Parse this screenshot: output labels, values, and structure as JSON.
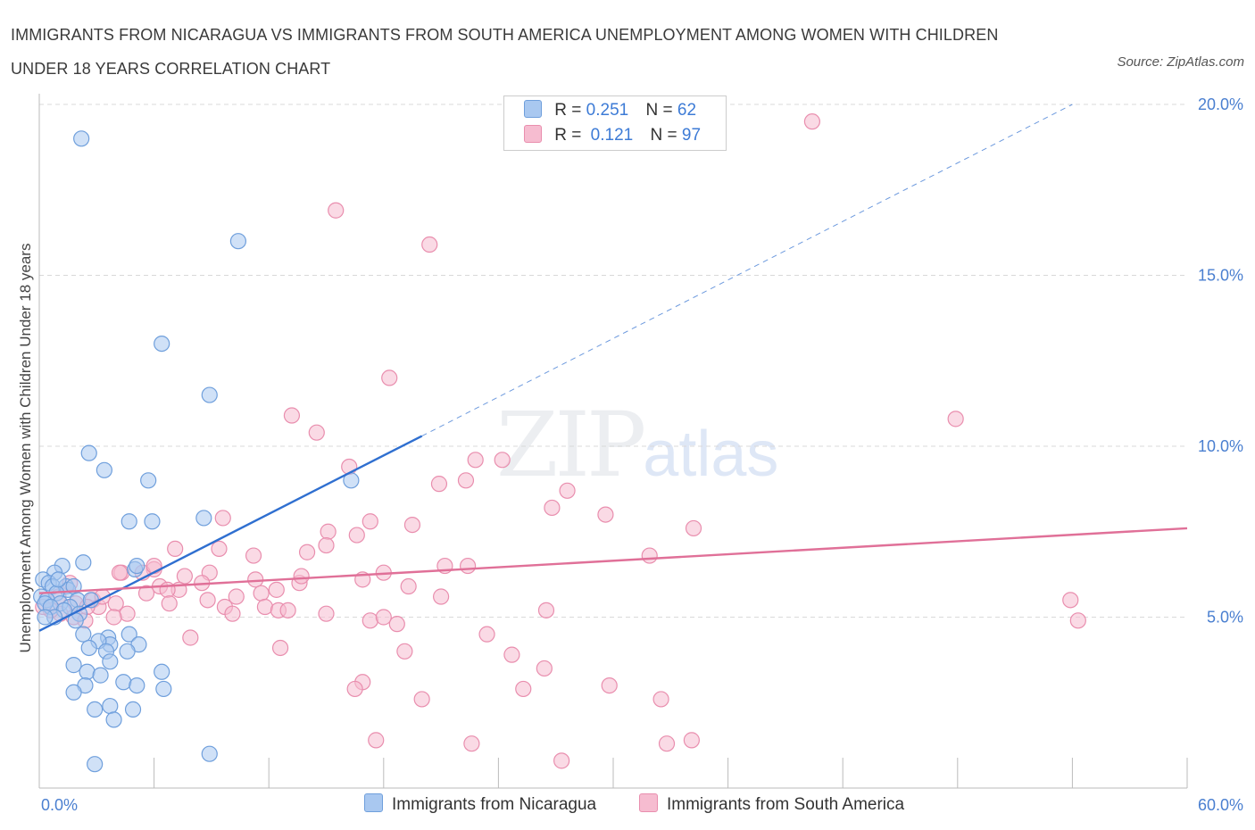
{
  "title_line1": "IMMIGRANTS FROM NICARAGUA VS IMMIGRANTS FROM SOUTH AMERICA UNEMPLOYMENT AMONG WOMEN WITH CHILDREN",
  "title_line2": "UNDER 18 YEARS CORRELATION CHART",
  "source": "Source: ZipAtlas.com",
  "watermark": {
    "zip": "ZIP",
    "atlas": "atlas"
  },
  "legend": {
    "rows": [
      {
        "r_label": "R =",
        "r_value": "0.251",
        "n_label": "N =",
        "n_value": "62"
      },
      {
        "r_label": "R =",
        "r_value": "0.121",
        "n_label": "N =",
        "n_value": "97"
      }
    ]
  },
  "colors": {
    "nicaragua_fill": "#a9c8f0",
    "nicaragua_stroke": "#6f9fdc",
    "nicaragua_line": "#2f6fd0",
    "southam_fill": "#f6bcd0",
    "southam_stroke": "#e98eae",
    "southam_line": "#e07098",
    "grid": "#d9d9d9",
    "axis_text": "#4a7fd0"
  },
  "chart_data": {
    "type": "scatter",
    "xlabel": "",
    "ylabel": "Unemployment Among Women with Children Under 18 years",
    "xlim": [
      0,
      60
    ],
    "ylim": [
      0,
      20
    ],
    "x_tick_labels": [
      "0.0%",
      "60.0%"
    ],
    "y_ticks": [
      5,
      10,
      15,
      20
    ],
    "y_tick_labels": [
      "5.0%",
      "10.0%",
      "15.0%",
      "20.0%"
    ],
    "grid": true,
    "legend_position": "bottom",
    "series": [
      {
        "name": "Immigrants from Nicaragua",
        "trend": {
          "x": [
            0,
            20
          ],
          "y": [
            4.6,
            10.3
          ],
          "extended_to": [
            54,
            20
          ]
        },
        "points": [
          [
            2.2,
            19.0
          ],
          [
            10.4,
            16.0
          ],
          [
            6.4,
            13.0
          ],
          [
            8.9,
            11.5
          ],
          [
            2.6,
            9.8
          ],
          [
            3.4,
            9.3
          ],
          [
            5.7,
            9.0
          ],
          [
            16.3,
            9.0
          ],
          [
            4.7,
            7.8
          ],
          [
            5.9,
            7.8
          ],
          [
            8.6,
            7.9
          ],
          [
            2.3,
            6.6
          ],
          [
            1.2,
            6.5
          ],
          [
            5.0,
            6.4
          ],
          [
            5.1,
            6.5
          ],
          [
            0.8,
            6.3
          ],
          [
            0.2,
            6.1
          ],
          [
            0.5,
            6.0
          ],
          [
            0.7,
            5.9
          ],
          [
            1.4,
            5.9
          ],
          [
            1.5,
            5.8
          ],
          [
            1.8,
            5.9
          ],
          [
            0.9,
            5.7
          ],
          [
            0.1,
            5.6
          ],
          [
            0.4,
            5.5
          ],
          [
            2.0,
            5.5
          ],
          [
            0.3,
            5.4
          ],
          [
            1.1,
            5.4
          ],
          [
            1.6,
            5.3
          ],
          [
            2.7,
            5.5
          ],
          [
            0.6,
            5.3
          ],
          [
            1.3,
            5.2
          ],
          [
            2.1,
            5.1
          ],
          [
            0.8,
            5.0
          ],
          [
            1.9,
            4.9
          ],
          [
            3.6,
            4.4
          ],
          [
            2.3,
            4.5
          ],
          [
            4.7,
            4.5
          ],
          [
            3.7,
            4.2
          ],
          [
            5.2,
            4.2
          ],
          [
            3.1,
            4.3
          ],
          [
            3.5,
            4.0
          ],
          [
            2.6,
            4.1
          ],
          [
            4.6,
            4.0
          ],
          [
            1.8,
            3.6
          ],
          [
            3.7,
            3.7
          ],
          [
            2.5,
            3.4
          ],
          [
            3.2,
            3.3
          ],
          [
            6.4,
            3.4
          ],
          [
            2.4,
            3.0
          ],
          [
            4.4,
            3.1
          ],
          [
            5.1,
            3.0
          ],
          [
            1.8,
            2.8
          ],
          [
            6.5,
            2.9
          ],
          [
            2.9,
            2.3
          ],
          [
            3.7,
            2.4
          ],
          [
            4.9,
            2.3
          ],
          [
            3.9,
            2.0
          ],
          [
            8.9,
            1.0
          ],
          [
            2.9,
            0.7
          ],
          [
            0.3,
            5.0
          ],
          [
            1.0,
            6.1
          ]
        ]
      },
      {
        "name": "Immigrants from South America",
        "trend": {
          "x": [
            0,
            60
          ],
          "y": [
            5.7,
            7.6
          ]
        },
        "points": [
          [
            40.4,
            19.5
          ],
          [
            15.5,
            16.9
          ],
          [
            20.4,
            15.9
          ],
          [
            18.3,
            12.0
          ],
          [
            13.2,
            10.9
          ],
          [
            14.5,
            10.4
          ],
          [
            47.9,
            10.8
          ],
          [
            22.8,
            9.6
          ],
          [
            16.2,
            9.4
          ],
          [
            24.2,
            9.6
          ],
          [
            20.9,
            8.9
          ],
          [
            22.3,
            9.0
          ],
          [
            27.6,
            8.7
          ],
          [
            26.8,
            8.2
          ],
          [
            29.6,
            8.0
          ],
          [
            9.6,
            7.9
          ],
          [
            17.3,
            7.8
          ],
          [
            19.5,
            7.7
          ],
          [
            34.2,
            7.6
          ],
          [
            15.1,
            7.5
          ],
          [
            16.6,
            7.4
          ],
          [
            15.0,
            7.1
          ],
          [
            7.1,
            7.0
          ],
          [
            9.4,
            7.0
          ],
          [
            11.2,
            6.8
          ],
          [
            14.0,
            6.9
          ],
          [
            31.9,
            6.8
          ],
          [
            21.2,
            6.5
          ],
          [
            22.4,
            6.5
          ],
          [
            6.0,
            6.4
          ],
          [
            8.9,
            6.3
          ],
          [
            18.0,
            6.3
          ],
          [
            4.3,
            6.3
          ],
          [
            7.6,
            6.2
          ],
          [
            5.4,
            6.3
          ],
          [
            11.3,
            6.1
          ],
          [
            16.9,
            6.1
          ],
          [
            13.6,
            6.0
          ],
          [
            8.5,
            6.0
          ],
          [
            6.3,
            5.9
          ],
          [
            7.3,
            5.8
          ],
          [
            19.3,
            5.9
          ],
          [
            6.7,
            5.8
          ],
          [
            5.6,
            5.7
          ],
          [
            11.6,
            5.7
          ],
          [
            10.3,
            5.6
          ],
          [
            21.0,
            5.6
          ],
          [
            53.9,
            5.5
          ],
          [
            2.8,
            5.5
          ],
          [
            4.0,
            5.4
          ],
          [
            6.8,
            5.4
          ],
          [
            3.1,
            5.3
          ],
          [
            9.7,
            5.3
          ],
          [
            11.8,
            5.3
          ],
          [
            12.5,
            5.2
          ],
          [
            13.0,
            5.2
          ],
          [
            26.5,
            5.2
          ],
          [
            10.1,
            5.1
          ],
          [
            15.0,
            5.1
          ],
          [
            4.6,
            5.1
          ],
          [
            3.9,
            5.0
          ],
          [
            1.1,
            5.1
          ],
          [
            1.8,
            5.0
          ],
          [
            2.4,
            4.9
          ],
          [
            17.3,
            4.9
          ],
          [
            18.7,
            4.8
          ],
          [
            54.3,
            4.9
          ],
          [
            23.4,
            4.5
          ],
          [
            7.9,
            4.4
          ],
          [
            12.6,
            4.1
          ],
          [
            19.1,
            4.0
          ],
          [
            24.7,
            3.9
          ],
          [
            26.4,
            3.5
          ],
          [
            16.9,
            3.1
          ],
          [
            16.5,
            2.9
          ],
          [
            29.8,
            3.0
          ],
          [
            25.3,
            2.9
          ],
          [
            20.0,
            2.6
          ],
          [
            32.5,
            2.6
          ],
          [
            17.6,
            1.4
          ],
          [
            22.6,
            1.3
          ],
          [
            32.8,
            1.3
          ],
          [
            34.1,
            1.4
          ],
          [
            27.3,
            0.8
          ],
          [
            1.0,
            5.6
          ],
          [
            1.9,
            5.4
          ],
          [
            3.3,
            5.6
          ],
          [
            0.6,
            5.2
          ],
          [
            2.5,
            5.3
          ],
          [
            0.2,
            5.3
          ],
          [
            1.6,
            6.0
          ],
          [
            4.2,
            6.3
          ],
          [
            6.0,
            6.5
          ],
          [
            8.8,
            5.5
          ],
          [
            12.4,
            5.8
          ],
          [
            13.7,
            6.2
          ],
          [
            18.0,
            5.0
          ]
        ]
      }
    ]
  }
}
